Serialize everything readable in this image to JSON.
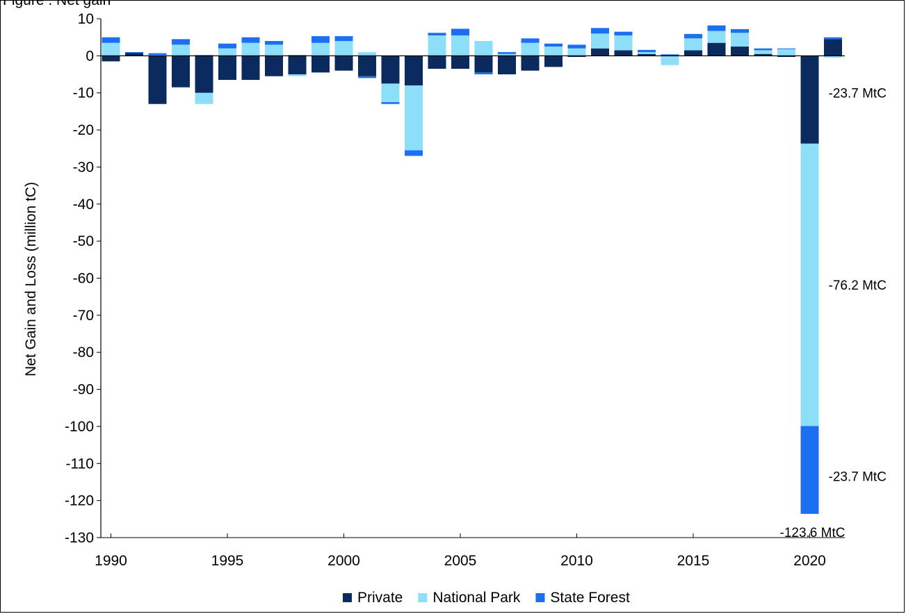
{
  "chart_data": {
    "type": "bar",
    "stacked": true,
    "header_text": "Figure . Net gain",
    "ylabel": "Net Gain and Loss (million tC)",
    "ylim": [
      -130,
      10
    ],
    "yticks": [
      10,
      0,
      -10,
      -20,
      -30,
      -40,
      -50,
      -60,
      -70,
      -80,
      -90,
      -100,
      -110,
      -120,
      -130
    ],
    "xtick_labels": [
      "1990",
      "1995",
      "2000",
      "2005",
      "2010",
      "2015",
      "2020"
    ],
    "categories": [
      1990,
      1991,
      1992,
      1993,
      1994,
      1995,
      1996,
      1997,
      1998,
      1999,
      2000,
      2001,
      2002,
      2003,
      2004,
      2005,
      2006,
      2007,
      2008,
      2009,
      2010,
      2011,
      2012,
      2013,
      2014,
      2015,
      2016,
      2017,
      2018,
      2019,
      2020,
      2021
    ],
    "series": [
      {
        "name": "Private",
        "color": "#0b2a5e",
        "values": [
          -1.5,
          0.8,
          -13,
          -8.5,
          -10,
          -6.5,
          -6.5,
          -5.5,
          -5,
          -4.5,
          -4,
          -5.5,
          -7.5,
          -8,
          -3.5,
          -3.5,
          -4.5,
          -5,
          -4,
          -3,
          -0.3,
          2,
          1.5,
          0.5,
          0.2,
          1.5,
          3.5,
          2.5,
          0.5,
          -0.3,
          -23.7,
          4.5
        ]
      },
      {
        "name": "National Park",
        "color": "#8ddff9",
        "values": [
          3.5,
          0,
          0.2,
          3,
          -3,
          2,
          3.5,
          3,
          -0.5,
          3.5,
          4,
          1,
          -5,
          -17.5,
          5.5,
          5.5,
          4,
          0.5,
          3.5,
          2.5,
          2,
          4,
          4,
          0.5,
          -2.5,
          3.2,
          3.2,
          3.7,
          1,
          1.8,
          -76.2,
          -0.5
        ]
      },
      {
        "name": "State Forest",
        "color": "#1c6ff0",
        "values": [
          1.5,
          0.2,
          0.5,
          1.5,
          0.2,
          1.3,
          1.5,
          1,
          0.2,
          1.8,
          1.3,
          -0.5,
          -0.5,
          -1.5,
          0.7,
          1.8,
          -0.5,
          0.5,
          1.2,
          0.8,
          1,
          1.5,
          1,
          0.6,
          0.2,
          1.2,
          1.5,
          1,
          0.5,
          0.2,
          -23.7,
          0.5
        ]
      }
    ],
    "annotations": [
      {
        "text": "-23.7 MtC",
        "series": "Private",
        "category": 2020
      },
      {
        "text": "-76.2 MtC",
        "series": "National Park",
        "category": 2020
      },
      {
        "text": "-23.7 MtC",
        "series": "State Forest",
        "category": 2020
      },
      {
        "text": "-123.6 MtC",
        "series": "total",
        "category": 2020
      }
    ],
    "legend_position": "bottom",
    "grid": false
  }
}
